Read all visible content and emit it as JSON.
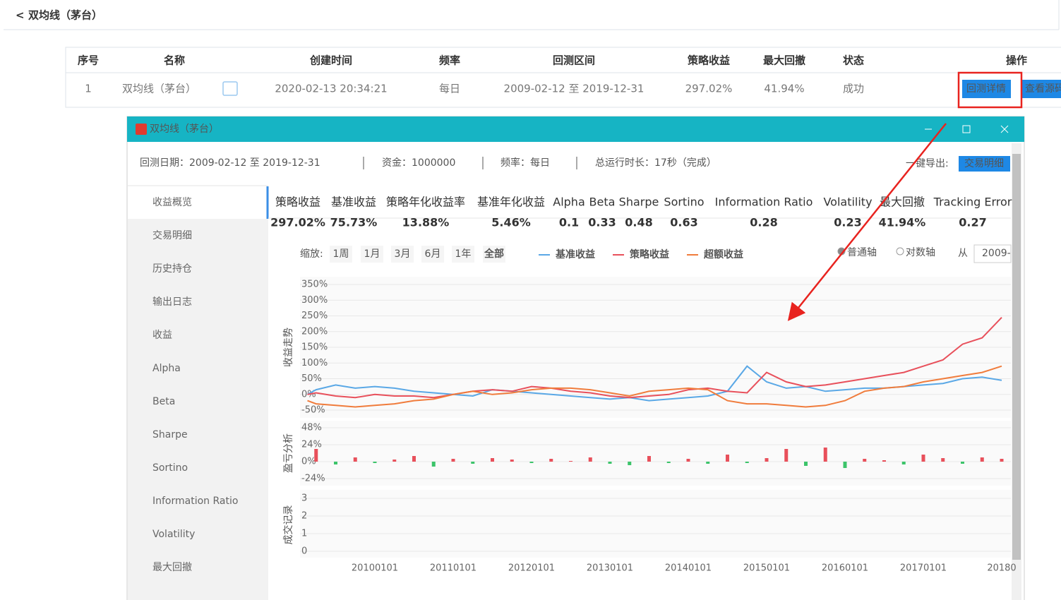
{
  "header": {
    "back": "<",
    "title": "双均线（茅台）"
  },
  "table": {
    "columns": [
      "序号",
      "名称",
      "创建时间",
      "频率",
      "回测区间",
      "策略收益",
      "最大回撤",
      "状态",
      "操作"
    ],
    "rows": [
      [
        "1",
        "双均线（茅台）",
        "2020-02-13 20:34:21",
        "每日",
        "2009-02-12 至 2019-12-31",
        "297.02%",
        "41.94%",
        "成功"
      ]
    ],
    "actions": [
      "回测详情",
      "查看源码"
    ]
  },
  "dialog": {
    "title": "双均线（茅台）",
    "info": {
      "date": "回测日期：2009-02-12 至 2019-12-31",
      "capital": "资金：1000000",
      "frequency": "频率：每日",
      "runtime": "总运行时长：17秒（完成）",
      "export_label": "一键导出:",
      "export_button": "交易明细"
    },
    "sidebar": [
      "收益概览",
      "交易明细",
      "历史持仓",
      "输出日志",
      "收益",
      "Alpha",
      "Beta",
      "Sharpe",
      "Sortino",
      "Information Ratio",
      "Volatility",
      "最大回撤"
    ],
    "metrics": {
      "headers": [
        "策略收益",
        "基准收益",
        "策略年化收益率",
        "基准年化收益",
        "Alpha",
        "Beta",
        "Sharpe",
        "Sortino",
        "Information Ratio",
        "Volatility",
        "最大回撤",
        "Tracking Error"
      ],
      "values": [
        "297.02%",
        "75.73%",
        "13.88%",
        "5.46%",
        "0.1",
        "0.33",
        "0.48",
        "0.63",
        "0.28",
        "0.23",
        "41.94%",
        "0.27"
      ]
    },
    "toolbar": {
      "zoom_label": "缩放:",
      "zoom": [
        "1周",
        "1月",
        "3月",
        "6月",
        "1年",
        "全部"
      ],
      "axis_modes": [
        "普通轴",
        "对数轴"
      ],
      "from_label": "从",
      "from_value": "2009-"
    }
  },
  "chart_data": [
    {
      "type": "line",
      "y_axis_title": "收益走势",
      "x": [
        2009.14,
        2009.25,
        2009.5,
        2009.75,
        2010.0,
        2010.25,
        2010.5,
        2010.75,
        2011.0,
        2011.25,
        2011.5,
        2011.75,
        2012.0,
        2012.25,
        2012.5,
        2012.75,
        2013.0,
        2013.25,
        2013.5,
        2013.75,
        2014.0,
        2014.25,
        2014.5,
        2014.75,
        2015.0,
        2015.25,
        2015.5,
        2015.75,
        2016.0,
        2016.25,
        2016.5,
        2016.75,
        2017.0,
        2017.25,
        2017.5,
        2017.75,
        2018.0
      ],
      "series": [
        {
          "name": "基准收益",
          "color": "#5aa8e6",
          "values": [
            0,
            15,
            30,
            20,
            25,
            20,
            10,
            5,
            0,
            -5,
            15,
            10,
            5,
            0,
            -5,
            -10,
            -15,
            -10,
            -20,
            -15,
            -10,
            -5,
            10,
            90,
            40,
            20,
            25,
            10,
            15,
            20,
            20,
            25,
            30,
            35,
            50,
            55,
            45
          ]
        },
        {
          "name": "策略收益",
          "color": "#e8505b",
          "values": [
            0,
            5,
            -5,
            -10,
            0,
            -5,
            -5,
            -10,
            0,
            10,
            15,
            10,
            25,
            20,
            10,
            5,
            -5,
            -10,
            -5,
            0,
            15,
            20,
            10,
            5,
            70,
            40,
            25,
            30,
            40,
            50,
            60,
            70,
            90,
            110,
            160,
            180,
            245
          ]
        },
        {
          "name": "超额收益",
          "color": "#f07c3c",
          "values": [
            -20,
            -30,
            -35,
            -40,
            -35,
            -30,
            -20,
            -15,
            0,
            10,
            0,
            5,
            15,
            20,
            20,
            15,
            5,
            -5,
            10,
            15,
            20,
            15,
            -20,
            -30,
            -30,
            -35,
            -40,
            -35,
            -20,
            10,
            20,
            25,
            40,
            50,
            60,
            70,
            90
          ]
        }
      ],
      "xlim": [
        2009.14,
        2018.12
      ],
      "xticks": [
        {
          "value": 2010,
          "label": "20100101"
        },
        {
          "value": 2011,
          "label": "20110101"
        },
        {
          "value": 2012,
          "label": "20120101"
        },
        {
          "value": 2013,
          "label": "20130101"
        },
        {
          "value": 2014,
          "label": "20140101"
        },
        {
          "value": 2015,
          "label": "20150101"
        },
        {
          "value": 2016,
          "label": "20160101"
        },
        {
          "value": 2017,
          "label": "20170101"
        },
        {
          "value": 2018,
          "label": "20180"
        }
      ],
      "ylim": [
        -50,
        350
      ],
      "yticks": [
        {
          "value": -50,
          "label": "-50%"
        },
        {
          "value": 0,
          "label": "0%"
        },
        {
          "value": 50,
          "label": "50%"
        },
        {
          "value": 100,
          "label": "100%"
        },
        {
          "value": 150,
          "label": "150%"
        },
        {
          "value": 200,
          "label": "200%"
        },
        {
          "value": 250,
          "label": "250%"
        },
        {
          "value": 300,
          "label": "300%"
        },
        {
          "value": 350,
          "label": "350%"
        }
      ],
      "grid": true
    },
    {
      "type": "bar",
      "y_axis_title": "盈亏分析",
      "x": [
        2009.25,
        2009.5,
        2009.75,
        2010.0,
        2010.25,
        2010.5,
        2010.75,
        2011.0,
        2011.25,
        2011.5,
        2011.75,
        2012.0,
        2012.25,
        2012.5,
        2012.75,
        2013.0,
        2013.25,
        2013.5,
        2013.75,
        2014.0,
        2014.25,
        2014.5,
        2014.75,
        2015.0,
        2015.25,
        2015.5,
        2015.75,
        2016.0,
        2016.25,
        2016.5,
        2016.75,
        2017.0,
        2017.25,
        2017.5,
        2017.75,
        2018.0
      ],
      "values": [
        18,
        -4,
        6,
        -2,
        3,
        8,
        -7,
        4,
        -3,
        5,
        3,
        -2,
        4,
        1,
        6,
        -3,
        -5,
        8,
        -2,
        4,
        -3,
        10,
        -2,
        5,
        18,
        -6,
        20,
        -9,
        4,
        2,
        -4,
        10,
        5,
        -3,
        6,
        4
      ],
      "colors": {
        "positive": "#e8505b",
        "negative": "#3cc46a"
      },
      "ylim": [
        -24,
        48
      ],
      "yticks": [
        {
          "value": -24,
          "label": "-24%"
        },
        {
          "value": 0,
          "label": "0%"
        },
        {
          "value": 24,
          "label": "24%"
        },
        {
          "value": 48,
          "label": "48%"
        }
      ],
      "grid": true
    },
    {
      "type": "empty",
      "y_axis_title": "成交记录",
      "ylim": [
        0,
        3
      ],
      "yticks": [
        0,
        1,
        2,
        3
      ],
      "grid": true
    }
  ]
}
